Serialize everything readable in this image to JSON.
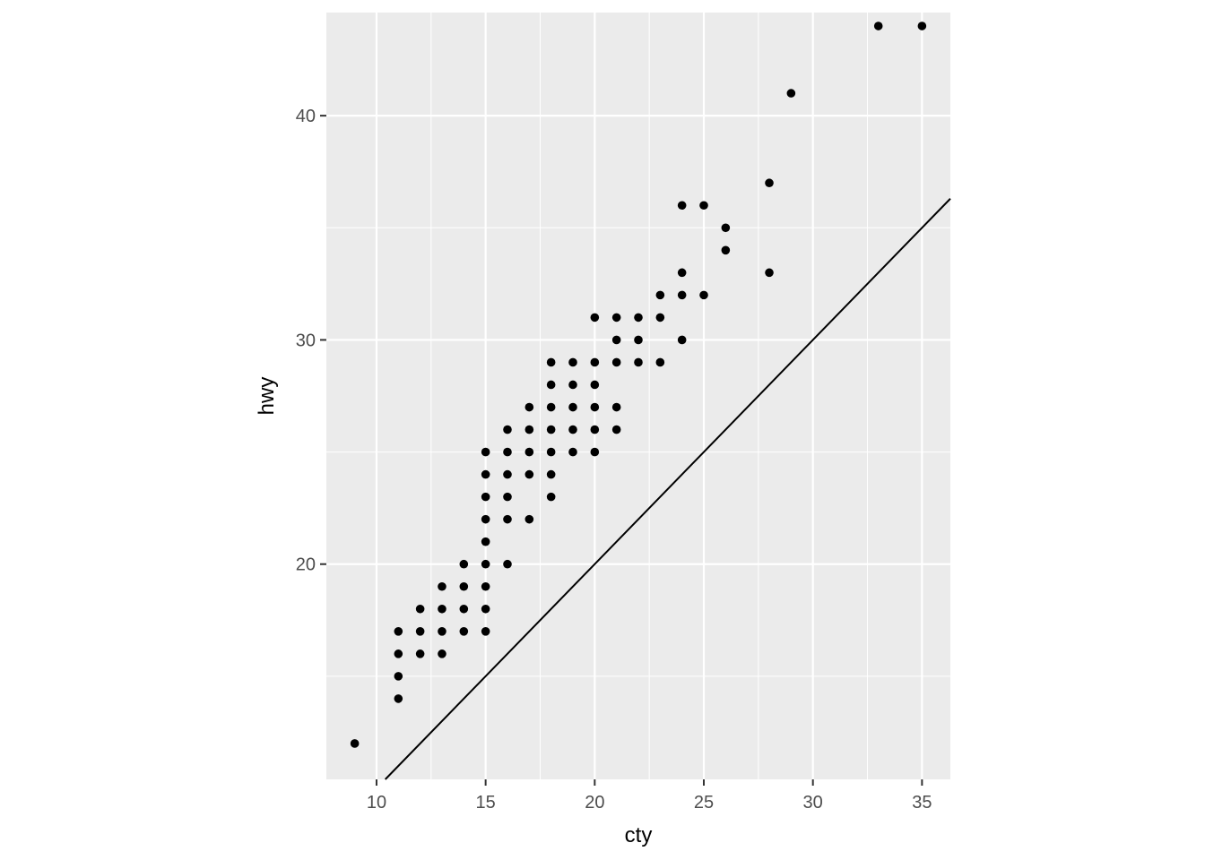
{
  "chart_data": {
    "type": "scatter",
    "title": "",
    "xlabel": "cty",
    "ylabel": "hwy",
    "xlim": [
      7.7,
      36.3
    ],
    "ylim": [
      10.4,
      44.6
    ],
    "x_ticks": [
      10,
      15,
      20,
      25,
      30,
      35
    ],
    "y_ticks": [
      20,
      30,
      40
    ],
    "x_tick_labels": [
      "10",
      "15",
      "20",
      "25",
      "30",
      "35"
    ],
    "y_tick_labels": [
      "20",
      "30",
      "40"
    ],
    "grid": true,
    "legend": "none",
    "reference_line": {
      "slope": 1,
      "intercept": 0
    },
    "points": [
      [
        9,
        12
      ],
      [
        11,
        14
      ],
      [
        11,
        15
      ],
      [
        11,
        16
      ],
      [
        11,
        17
      ],
      [
        12,
        16
      ],
      [
        12,
        17
      ],
      [
        12,
        18
      ],
      [
        13,
        16
      ],
      [
        13,
        17
      ],
      [
        13,
        18
      ],
      [
        13,
        19
      ],
      [
        14,
        17
      ],
      [
        14,
        18
      ],
      [
        14,
        19
      ],
      [
        14,
        20
      ],
      [
        15,
        17
      ],
      [
        15,
        18
      ],
      [
        15,
        19
      ],
      [
        15,
        20
      ],
      [
        15,
        21
      ],
      [
        15,
        22
      ],
      [
        15,
        23
      ],
      [
        15,
        24
      ],
      [
        15,
        25
      ],
      [
        16,
        20
      ],
      [
        16,
        22
      ],
      [
        16,
        23
      ],
      [
        16,
        24
      ],
      [
        16,
        25
      ],
      [
        16,
        26
      ],
      [
        17,
        22
      ],
      [
        17,
        24
      ],
      [
        17,
        25
      ],
      [
        17,
        26
      ],
      [
        17,
        27
      ],
      [
        18,
        23
      ],
      [
        18,
        24
      ],
      [
        18,
        25
      ],
      [
        18,
        26
      ],
      [
        18,
        27
      ],
      [
        18,
        28
      ],
      [
        18,
        29
      ],
      [
        19,
        25
      ],
      [
        19,
        26
      ],
      [
        19,
        27
      ],
      [
        19,
        28
      ],
      [
        19,
        29
      ],
      [
        20,
        25
      ],
      [
        20,
        26
      ],
      [
        20,
        27
      ],
      [
        20,
        28
      ],
      [
        20,
        29
      ],
      [
        20,
        31
      ],
      [
        21,
        26
      ],
      [
        21,
        27
      ],
      [
        21,
        29
      ],
      [
        21,
        30
      ],
      [
        21,
        31
      ],
      [
        22,
        29
      ],
      [
        22,
        30
      ],
      [
        22,
        31
      ],
      [
        23,
        29
      ],
      [
        23,
        31
      ],
      [
        23,
        32
      ],
      [
        24,
        30
      ],
      [
        24,
        32
      ],
      [
        24,
        33
      ],
      [
        24,
        36
      ],
      [
        25,
        32
      ],
      [
        25,
        36
      ],
      [
        26,
        34
      ],
      [
        26,
        35
      ],
      [
        28,
        33
      ],
      [
        28,
        37
      ],
      [
        29,
        41
      ],
      [
        33,
        44
      ],
      [
        35,
        44
      ]
    ],
    "colors": {
      "panel_background": "#EBEBEB",
      "grid_major": "#FFFFFF",
      "point": "#000000",
      "line": "#000000",
      "tick_label": "#4D4D4D",
      "axis_title": "#000000"
    }
  }
}
